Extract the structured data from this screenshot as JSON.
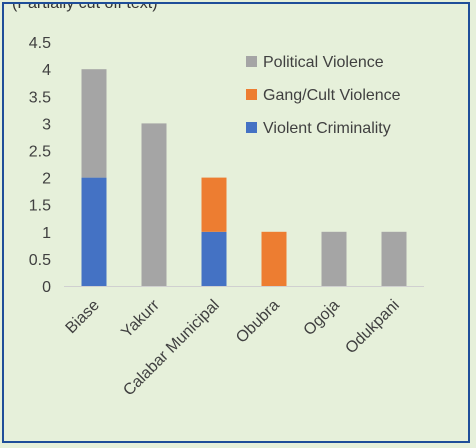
{
  "page": {
    "top_text": "(Partially cut off text)",
    "background_color": "#e6f0da",
    "border_color": "#1f4e99"
  },
  "chart_data": {
    "type": "bar",
    "stacked": true,
    "categories": [
      "Biase",
      "Yakurr",
      "Calabar Municipal",
      "Obubra",
      "Ogoja",
      "Odukpani"
    ],
    "series": [
      {
        "name": "Violent Criminality",
        "color": "#4472c4",
        "values": [
          2,
          0,
          1,
          0,
          0,
          0
        ]
      },
      {
        "name": "Gang/Cult Violence",
        "color": "#ed7d31",
        "values": [
          0,
          0,
          1,
          1,
          0,
          0
        ]
      },
      {
        "name": "Political Violence",
        "color": "#a5a5a5",
        "values": [
          2,
          3,
          0,
          0,
          1,
          1
        ]
      }
    ],
    "legend_order": [
      "Political Violence",
      "Gang/Cult Violence",
      "Violent Criminality"
    ],
    "yticks": [
      "0",
      "0.5",
      "1",
      "1.5",
      "2",
      "2.5",
      "3",
      "3.5",
      "4",
      "4.5"
    ],
    "ylim": [
      0,
      4.5
    ],
    "grid": false,
    "legend_position": "top-right"
  }
}
